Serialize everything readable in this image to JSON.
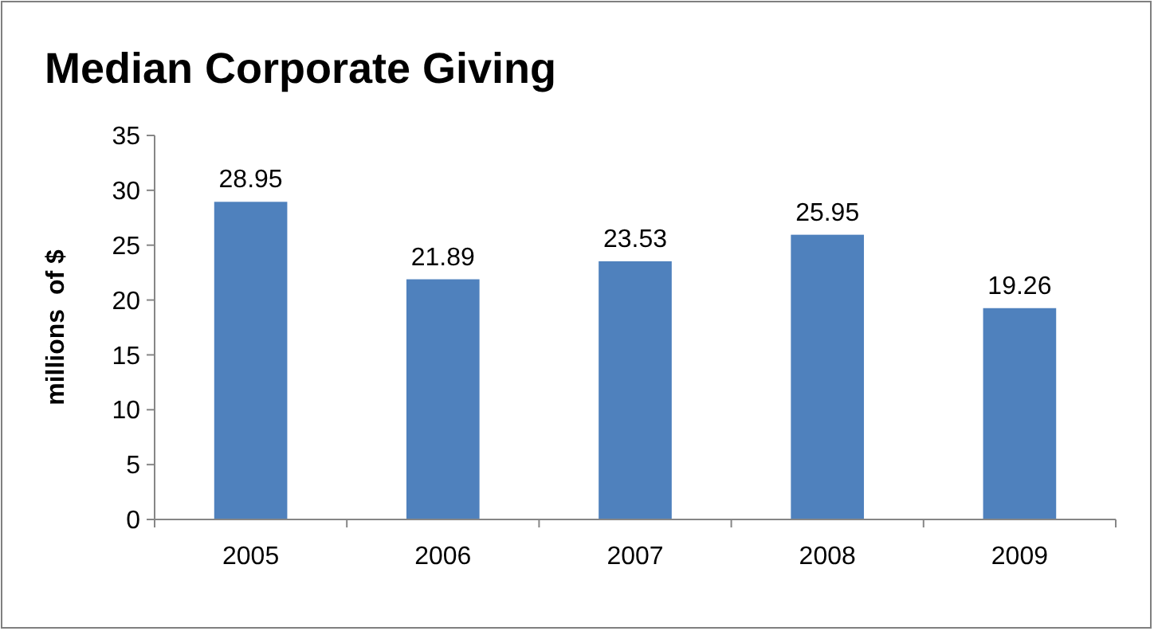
{
  "chart_data": {
    "type": "bar",
    "title": "Median Corporate Giving",
    "ylabel": "millions  of $",
    "categories": [
      "2005",
      "2006",
      "2007",
      "2008",
      "2009"
    ],
    "values": [
      28.95,
      21.89,
      23.53,
      25.95,
      19.26
    ],
    "color": "#4f81bd",
    "ylim": [
      0,
      35
    ],
    "yticks": [
      0,
      5,
      10,
      15,
      20,
      25,
      30,
      35
    ],
    "grid": false,
    "data_labels": true
  }
}
